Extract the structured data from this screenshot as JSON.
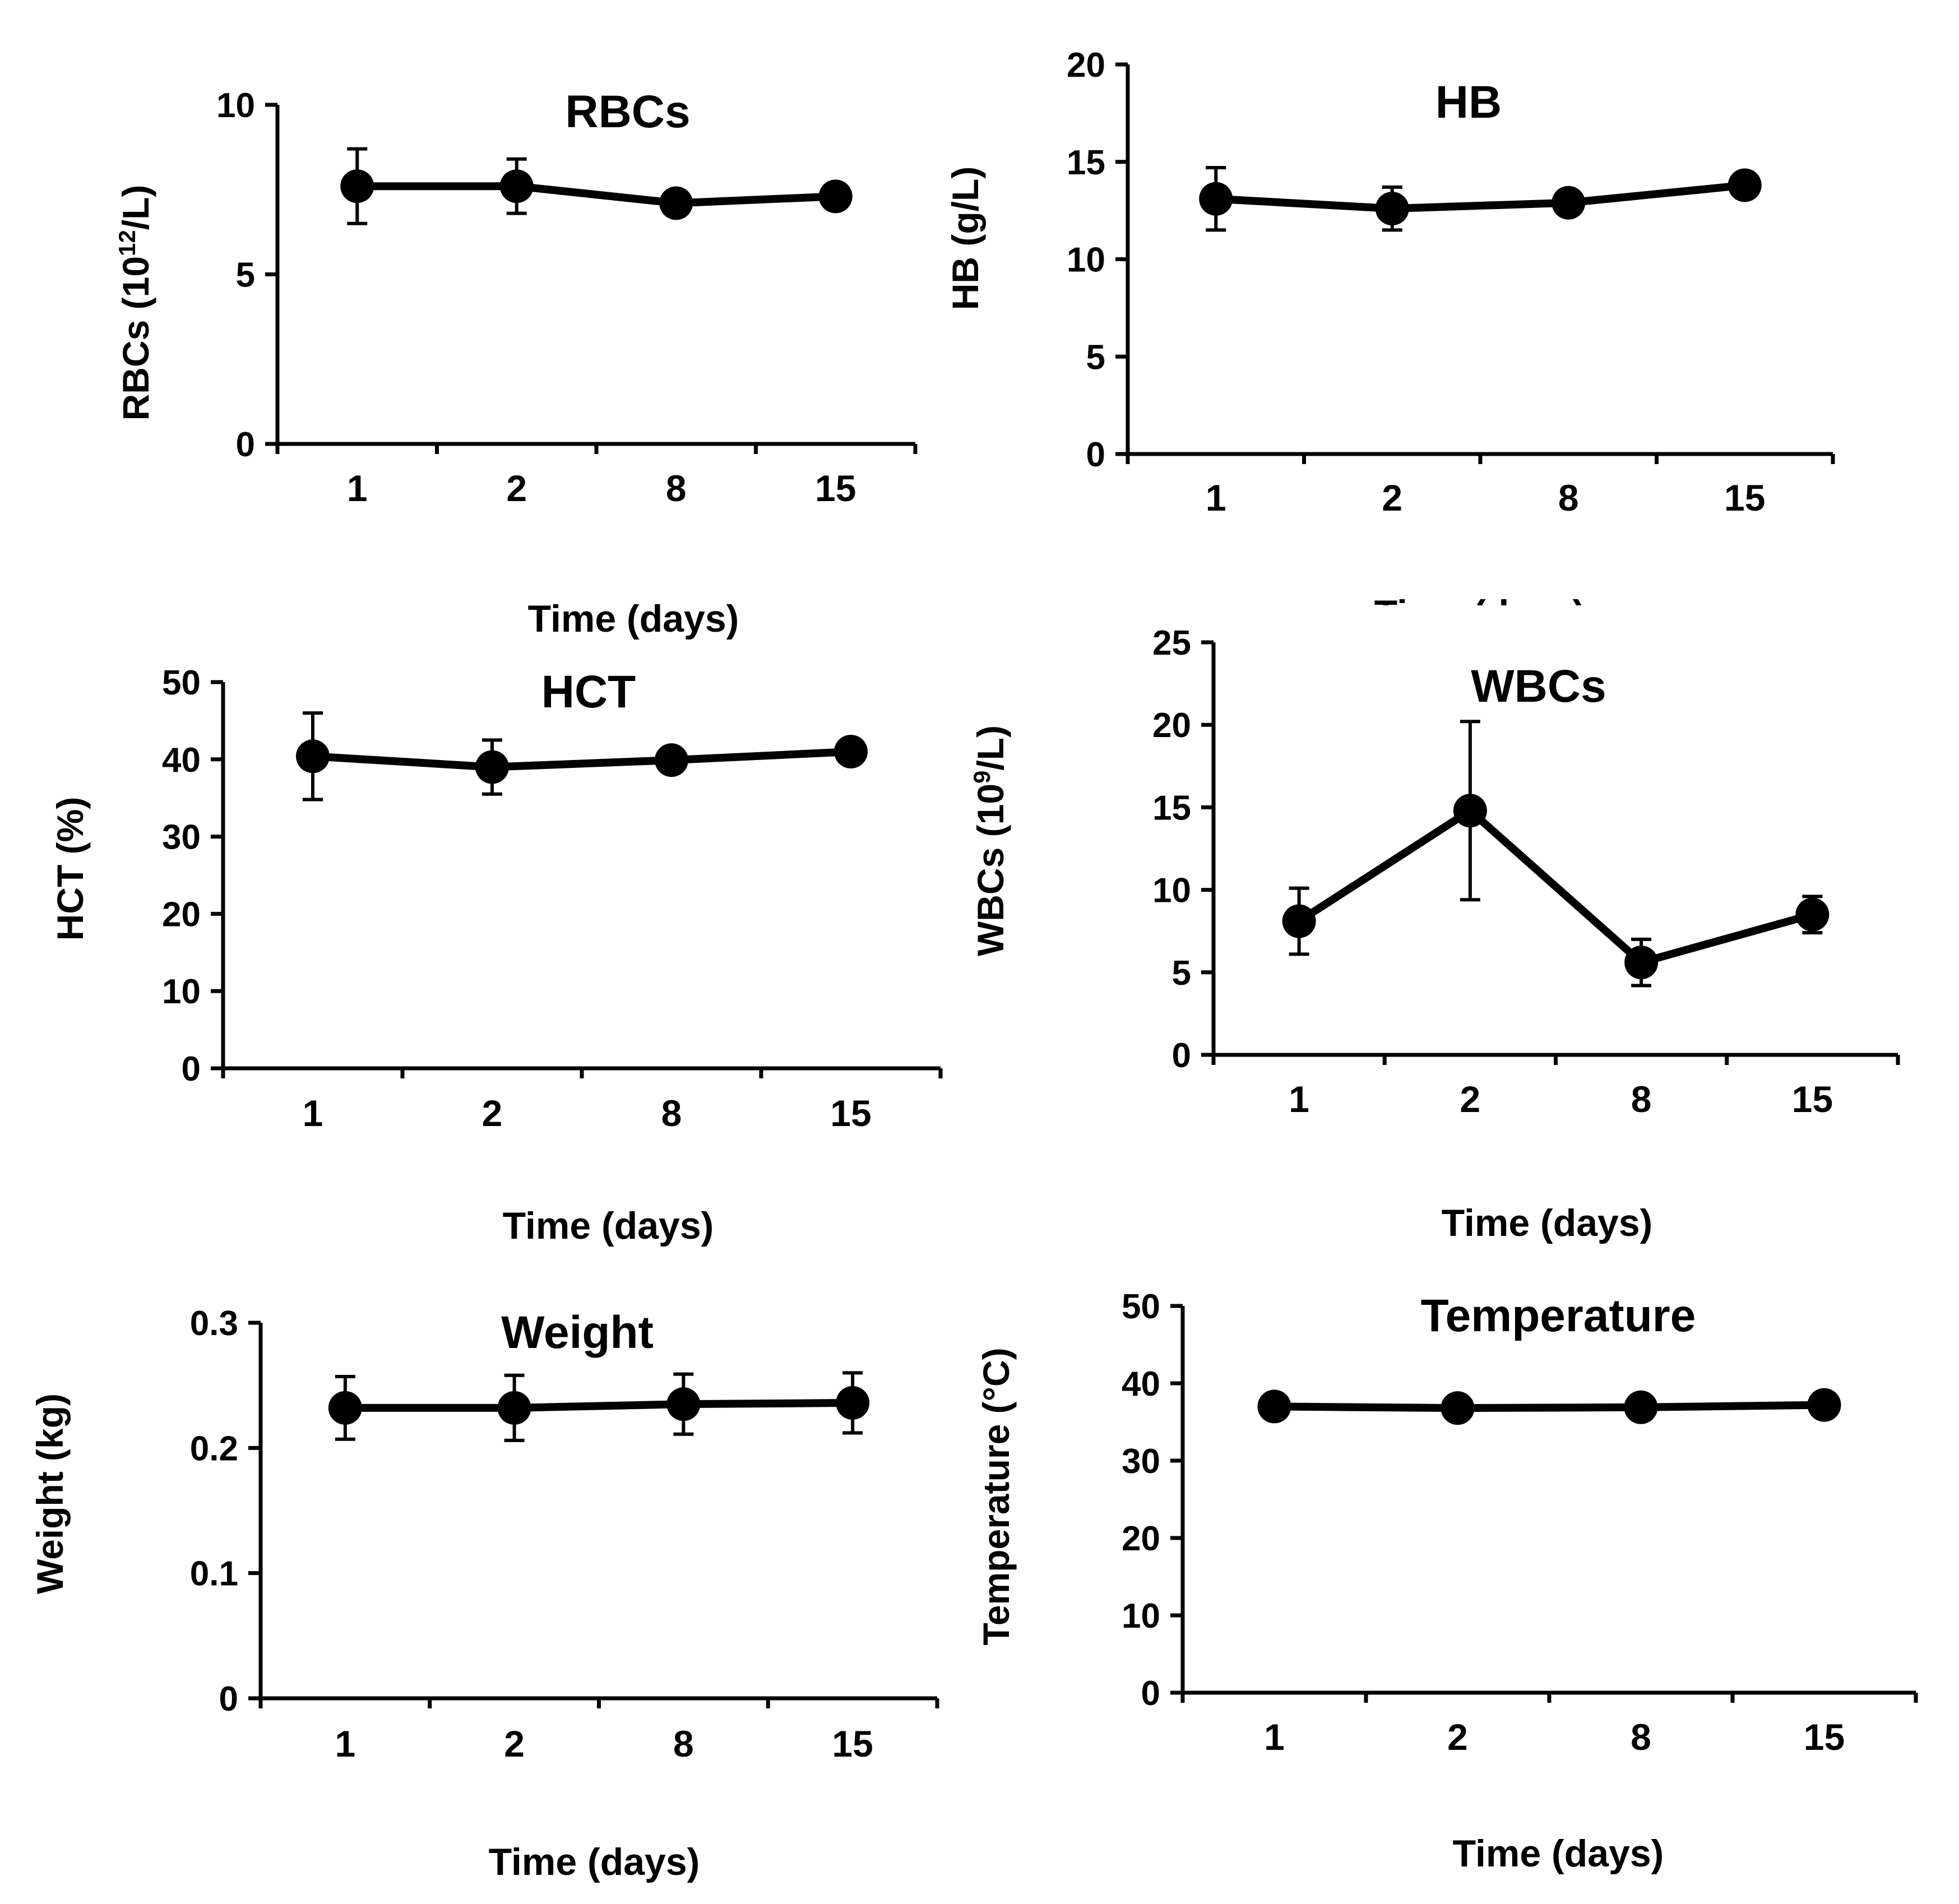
{
  "chart_data": [
    {
      "type": "line",
      "title": "RBCs",
      "ylabel": "RBCs (10",
      "ylabel_sup": "12",
      "ylabel_tail": "/L)",
      "xlabel": "Time (days)",
      "categories": [
        "1",
        "2",
        "8",
        "15"
      ],
      "values": [
        7.6,
        7.6,
        7.1,
        7.3
      ],
      "errors": [
        1.1,
        0.8,
        0,
        0
      ],
      "ylim": [
        0,
        10
      ],
      "yticks": [
        "0",
        "5",
        "10"
      ]
    },
    {
      "type": "line",
      "title": "HB",
      "ylabel": "HB (g/L)",
      "xlabel": "Time (days)",
      "categories": [
        "1",
        "2",
        "8",
        "15"
      ],
      "values": [
        13.1,
        12.6,
        12.9,
        13.8
      ],
      "errors": [
        1.6,
        1.1,
        0,
        0
      ],
      "ylim": [
        0,
        20
      ],
      "yticks": [
        "0",
        "5",
        "10",
        "15",
        "20"
      ]
    },
    {
      "type": "line",
      "title": "HCT",
      "ylabel": "HCT (%)",
      "xlabel": "Time (days)",
      "categories": [
        "1",
        "2",
        "8",
        "15"
      ],
      "values": [
        40.4,
        39.0,
        39.9,
        41.0
      ],
      "errors": [
        5.6,
        3.5,
        0,
        0
      ],
      "ylim": [
        0,
        50
      ],
      "yticks": [
        "0",
        "10",
        "20",
        "30",
        "40",
        "50"
      ]
    },
    {
      "type": "line",
      "title": "WBCs",
      "ylabel": "WBCs (10",
      "ylabel_sup": "9",
      "ylabel_tail": "/L)",
      "xlabel": "Time (days)",
      "categories": [
        "1",
        "2",
        "8",
        "15"
      ],
      "values": [
        8.1,
        14.8,
        5.6,
        8.5
      ],
      "errors": [
        2.0,
        5.4,
        1.4,
        1.1
      ],
      "ylim": [
        0,
        25
      ],
      "yticks": [
        "0",
        "5",
        "10",
        "15",
        "20",
        "25"
      ]
    },
    {
      "type": "line",
      "title": "Weight",
      "ylabel": "Weight (kg)",
      "xlabel": "Time (days)",
      "categories": [
        "1",
        "2",
        "8",
        "15"
      ],
      "values": [
        0.232,
        0.232,
        0.235,
        0.236
      ],
      "errors": [
        0.025,
        0.026,
        0.024,
        0.024
      ],
      "ylim": [
        0,
        0.3
      ],
      "yticks": [
        "0",
        "0.1",
        "0.2",
        "0.3"
      ]
    },
    {
      "type": "line",
      "title": "Temperature",
      "ylabel": "Temperature (°C)",
      "xlabel": "Time (days)",
      "categories": [
        "1",
        "2",
        "8",
        "15"
      ],
      "values": [
        37.0,
        36.8,
        36.9,
        37.2
      ],
      "errors": [
        0,
        0,
        0,
        0
      ],
      "ylim": [
        0,
        50
      ],
      "yticks": [
        "0",
        "10",
        "20",
        "30",
        "40",
        "50"
      ]
    }
  ]
}
